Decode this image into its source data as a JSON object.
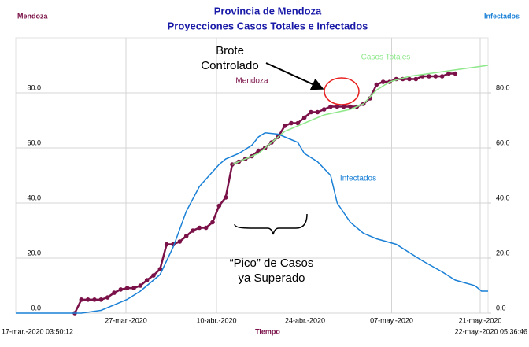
{
  "chart_data": {
    "type": "line",
    "title": "Provincia de Mendoza",
    "subtitle": "Proyecciones Casos Totales e Infectados",
    "y_label": "Mendoza",
    "y2_label": "Infectados",
    "x_label": "Tiempo",
    "x_start_label": "17-mar.-2020 03:50:12",
    "x_end_label": "22-may.-2020 05:36:46",
    "annotations": [
      "Brote",
      "Controlado",
      "“Pico” de Casos",
      "ya Superado"
    ],
    "xlim": [
      0,
      72
    ],
    "xticks": [
      {
        "value": 16.8,
        "label": "27-mar.-2020"
      },
      {
        "value": 30.6,
        "label": "10-abr.-2020"
      },
      {
        "value": 44.1,
        "label": "24-abr.-2020"
      },
      {
        "value": 57.3,
        "label": "07-may.-2020"
      },
      {
        "value": 70.8,
        "label": "21-may.-2020"
      }
    ],
    "ylim": [
      0,
      100
    ],
    "yticks": [
      {
        "value": 0,
        "label": "0.0"
      },
      {
        "value": 20,
        "label": "20.0"
      },
      {
        "value": 40,
        "label": "40.0"
      },
      {
        "value": 60,
        "label": "60.0"
      },
      {
        "value": 80,
        "label": "80.0"
      }
    ],
    "y2lim": [
      0,
      100
    ],
    "y2ticks": [
      {
        "value": 0,
        "label": "0.0"
      },
      {
        "value": 20,
        "label": "20.0"
      },
      {
        "value": 40,
        "label": "40.0"
      },
      {
        "value": 60,
        "label": "60.0"
      },
      {
        "value": 80,
        "label": "80.0"
      }
    ],
    "grid": true,
    "series": [
      {
        "name": "Mendoza",
        "color": "#7a1148",
        "markers": true,
        "x": [
          9,
          10,
          11,
          12,
          13,
          14,
          15,
          16,
          17,
          18,
          19,
          20,
          21,
          22,
          23,
          24,
          25,
          26,
          27,
          28,
          29,
          30,
          31,
          32,
          33,
          34,
          35,
          36,
          37,
          38,
          39,
          40,
          41,
          42,
          43,
          44,
          45,
          46,
          47,
          48,
          49,
          50,
          51,
          52,
          53,
          54,
          55,
          56,
          57,
          58,
          59,
          60,
          61,
          62,
          63,
          64,
          65,
          66,
          67
        ],
        "values": [
          0,
          4.9,
          4.9,
          4.9,
          4.9,
          5.7,
          7.4,
          8.6,
          9.1,
          9.1,
          10,
          12,
          13.7,
          16,
          25,
          25,
          26,
          28,
          30,
          31,
          31,
          33,
          39,
          42,
          54,
          55,
          56,
          57,
          59,
          60,
          62,
          64,
          68,
          69,
          69,
          71,
          73,
          73,
          74,
          75,
          75,
          75,
          75,
          75,
          76,
          78,
          83,
          84,
          84,
          85,
          85,
          85,
          85,
          86,
          86,
          86,
          86,
          87,
          87
        ]
      },
      {
        "name": "Casos Totales",
        "color": "#8ee88a",
        "markers": false,
        "x": [
          33,
          35,
          37,
          39,
          41,
          43,
          45,
          47,
          49,
          51,
          53,
          55,
          57,
          60,
          63,
          66,
          69,
          72
        ],
        "values": [
          54,
          56,
          58,
          62,
          66,
          68,
          70,
          72,
          73,
          74,
          76,
          81,
          84,
          86,
          87,
          88,
          89,
          90
        ]
      },
      {
        "name": "Infectados",
        "color": "#1a80d6",
        "markers": false,
        "axis": "y2",
        "x": [
          0,
          10,
          13,
          17,
          19,
          22,
          24,
          26,
          28,
          31,
          32,
          34,
          36,
          37,
          38,
          40,
          41,
          43,
          44,
          46,
          48,
          49,
          51,
          53,
          55,
          58,
          60,
          62,
          65,
          67,
          70,
          71,
          72
        ],
        "values": [
          0,
          0,
          1,
          5,
          8,
          14,
          24,
          37,
          46,
          54,
          56,
          58,
          61,
          64,
          65.5,
          65,
          64,
          62,
          58,
          55,
          50,
          40,
          33,
          29,
          27,
          25,
          22,
          19,
          15,
          12,
          10,
          8,
          8
        ]
      }
    ]
  }
}
